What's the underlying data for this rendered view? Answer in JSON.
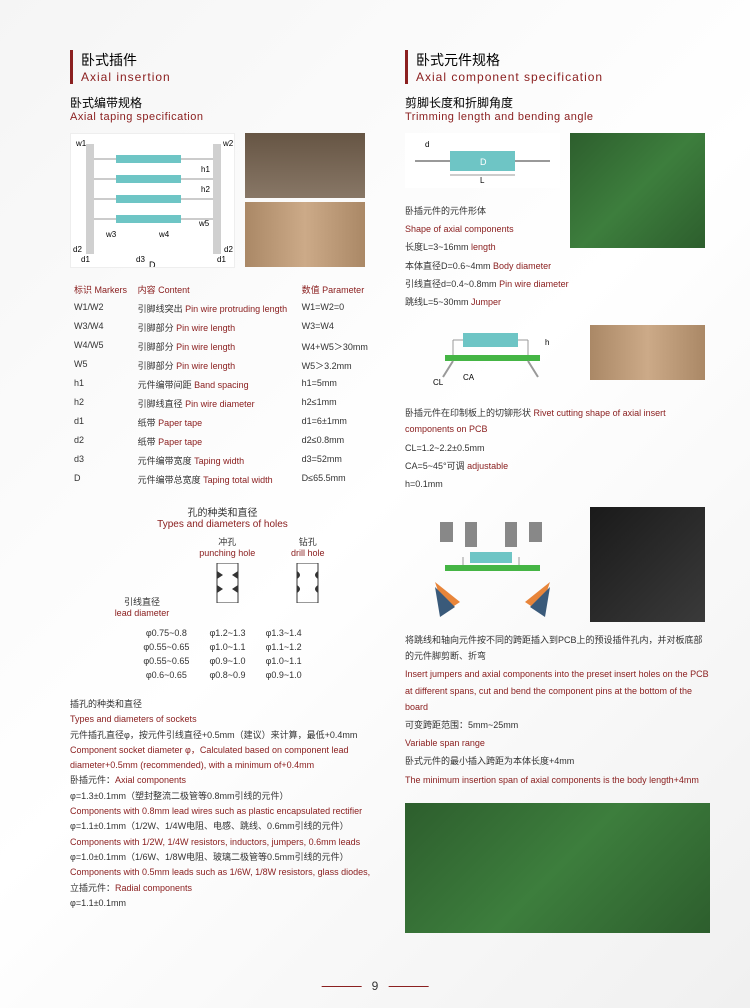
{
  "left": {
    "hdr_cn": "卧式插件",
    "hdr_en": "Axial insertion",
    "sub_cn": "卧式编带规格",
    "sub_en": "Axial taping specification",
    "tbl_hdr": {
      "c1a": "标识",
      "c1b": "Markers",
      "c2a": "内容",
      "c2b": "Content",
      "c3a": "数值",
      "c3b": "Parameter"
    },
    "rows": [
      {
        "m": "W1/W2",
        "ca": "引脚线突出",
        "cb": "Pin wire protruding length",
        "p": "W1=W2=0"
      },
      {
        "m": "W3/W4",
        "ca": "引脚部分",
        "cb": "Pin wire length",
        "p": "W3=W4"
      },
      {
        "m": "W4/W5",
        "ca": "引脚部分",
        "cb": "Pin wire length",
        "p": "W4+W5＞30mm"
      },
      {
        "m": "W5",
        "ca": "引脚部分",
        "cb": "Pin wire length",
        "p": "W5＞3.2mm"
      },
      {
        "m": "h1",
        "ca": "元件编带间距",
        "cb": "Band spacing",
        "p": "h1=5mm"
      },
      {
        "m": "h2",
        "ca": "引脚线直径",
        "cb": "Pin wire diameter",
        "p": "h2≤1mm"
      },
      {
        "m": "d1",
        "ca": "纸带",
        "cb": "Paper tape",
        "p": "d1=6±1mm"
      },
      {
        "m": "d2",
        "ca": "纸带",
        "cb": "Paper tape",
        "p": "d2≤0.8mm"
      },
      {
        "m": "d3",
        "ca": "元件编带宽度",
        "cb": "Taping width",
        "p": "d3=52mm"
      },
      {
        "m": "D",
        "ca": "元件编带总宽度",
        "cb": "Taping total width",
        "p": "D≤65.5mm"
      }
    ],
    "holes": {
      "title_cn": "孔的种类和直径",
      "title_en": "Types and diameters of holes",
      "punch_cn": "冲孔",
      "punch_en": "punching hole",
      "drill_cn": "钻孔",
      "drill_en": "drill hole",
      "lead_cn": "引线直径",
      "lead_en": "lead diameter",
      "lead_vals": [
        "φ0.75~0.8",
        "φ0.55~0.65",
        "φ0.55~0.65",
        "φ0.6~0.65"
      ],
      "punch_vals": [
        "φ1.2~1.3",
        "φ1.0~1.1",
        "φ0.9~1.0",
        "φ0.8~0.9"
      ],
      "drill_vals": [
        "φ1.3~1.4",
        "φ1.1~1.2",
        "φ1.0~1.1",
        "φ0.9~1.0"
      ]
    },
    "socket": {
      "t_cn": "插孔的种类和直径",
      "t_en": "Types and diameters of sockets",
      "l1_cn": "元件插孔直径φ，按元件引线直径+0.5mm（建议）来计算，最低+0.4mm",
      "l1_en": "Component socket diameter φ，Calculated based on component lead diameter+0.5mm (recommended), with a minimum of+0.4mm",
      "ax_cn": "卧插元件：",
      "ax_en": "Axial components",
      "a1_cn": "φ=1.3±0.1mm（塑封整流二极管等0.8mm引线的元件）",
      "a1_en": "Components with 0.8mm lead wires such as plastic encapsulated rectifier",
      "a2_cn": "φ=1.1±0.1mm（1/2W、1/4W电阻、电感、跳线、0.6mm引线的元件）",
      "a2_en": "Components with 1/2W, 1/4W resistors, inductors, jumpers, 0.6mm leads",
      "a3_cn": "φ=1.0±0.1mm（1/6W、1/8W电阻、玻璃二极管等0.5mm引线的元件）",
      "a3_en": "Components with 0.5mm leads such as 1/6W, 1/8W resistors, glass diodes,",
      "rad_cn": "立插元件：",
      "rad_en": "Radial components",
      "rad_v": "φ=1.1±0.1mm"
    }
  },
  "right": {
    "hdr_cn": "卧式元件规格",
    "hdr_en": "Axial component specification",
    "sub_cn": "剪脚长度和折脚角度",
    "sub_en": "Trimming length and bending angle",
    "shape_cn": "卧插元件的元件形体",
    "shape_en": "Shape of axial components",
    "s1_cn": "长度L=3~16mm",
    "s1_en": "length",
    "s2_cn": "本体直径D=0.6~4mm",
    "s2_en": "Body diameter",
    "s3_cn": "引线直径d=0.4~0.8mm",
    "s3_en": "Pin wire diameter",
    "s4_cn": "跳线L=5~30mm",
    "s4_en": "Jumper",
    "rivet_cn": "卧插元件在印制板上的切铆形状",
    "rivet_en": "Rivet cutting shape of axial insert components on PCB",
    "r1": "CL=1.2~2.2±0.5mm",
    "r2_cn": "CA=5~45°可调",
    "r2_en": "adjustable",
    "r3": "h=0.1mm",
    "insert_cn": "将跳线和轴向元件按不同的跨距插入到PCB上的预设插件孔内，并对板底部的元件脚剪断、折弯",
    "insert_en": "Insert jumpers and axial components into the preset insert holes on the PCB at different spans, cut and bend the component pins at the bottom of the board",
    "span_cn": "可变跨距范围：5mm~25mm",
    "span_en": "Variable span range",
    "min_cn": "卧式元件的最小插入跨距为本体长度+4mm",
    "min_en": "The minimum insertion span of axial components is the body length+4mm"
  },
  "page": "9",
  "colors": {
    "accent": "#8b2020",
    "teal": "#6ec5c5",
    "orange": "#e8853a"
  }
}
